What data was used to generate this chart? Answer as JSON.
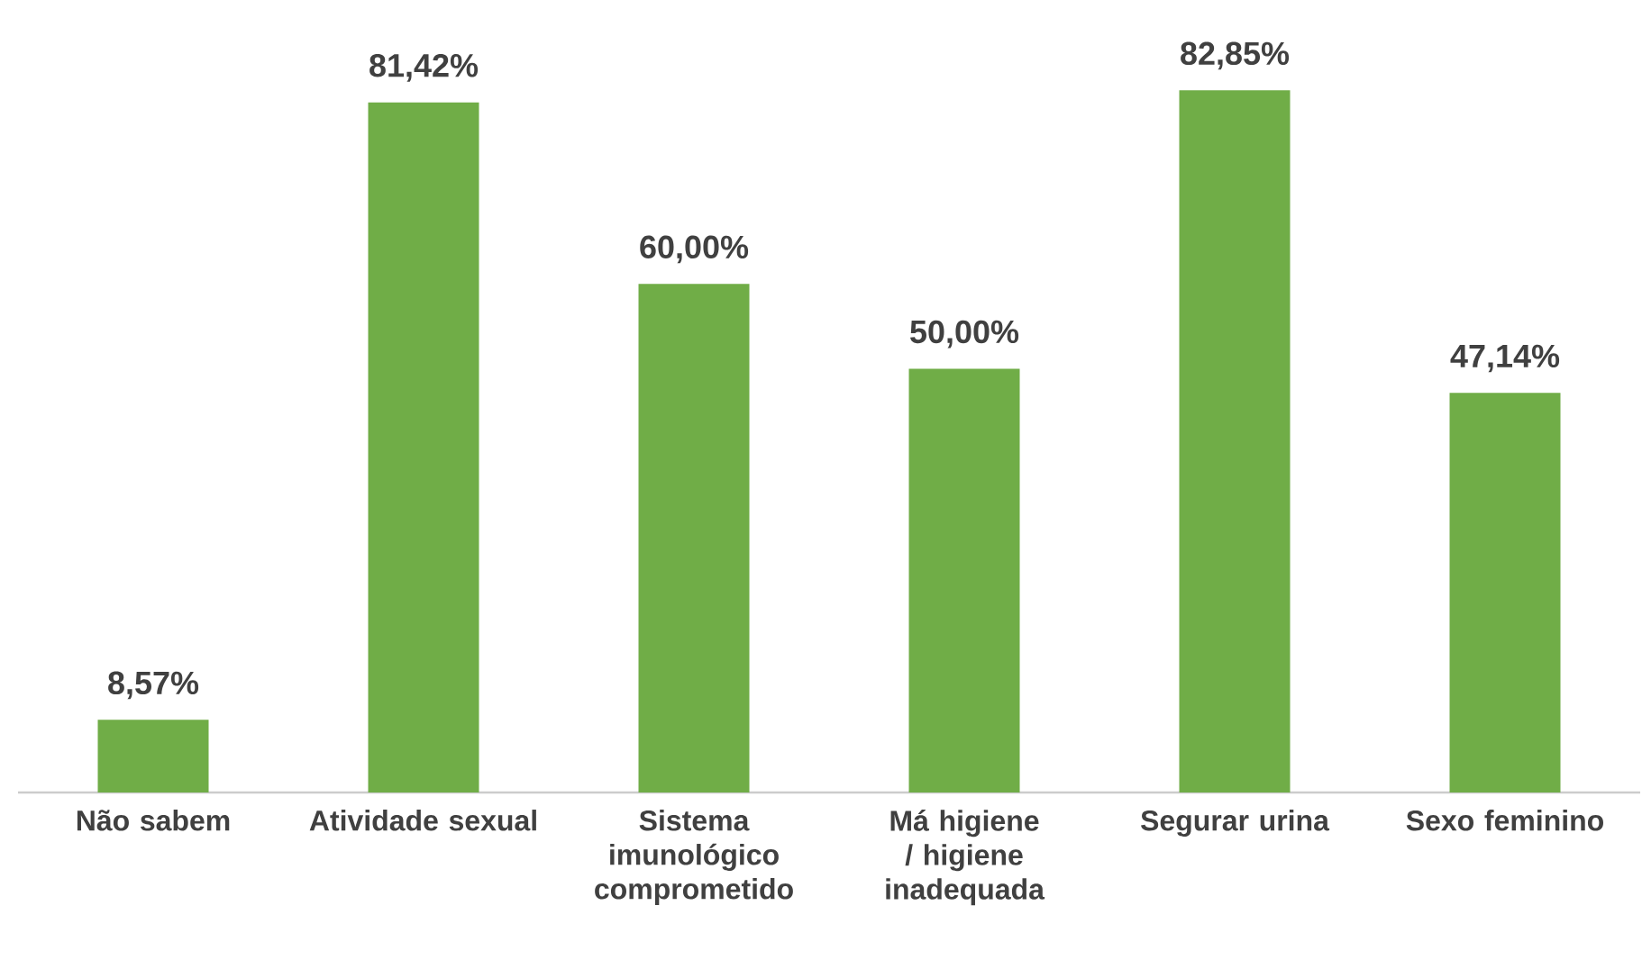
{
  "chart_data": {
    "type": "bar",
    "categories": [
      "Não sabem",
      "Atividade sexual",
      "Sistema imunológico comprometido",
      "Má higiene / higiene inadequada",
      "Segurar urina",
      "Sexo feminino"
    ],
    "values": [
      8.57,
      81.42,
      60.0,
      50.0,
      82.85,
      47.14
    ],
    "value_labels": [
      "8,57%",
      "81,42%",
      "60,00%",
      "50,00%",
      "82,85%",
      "47,14%"
    ],
    "color": "#70ad47"
  }
}
